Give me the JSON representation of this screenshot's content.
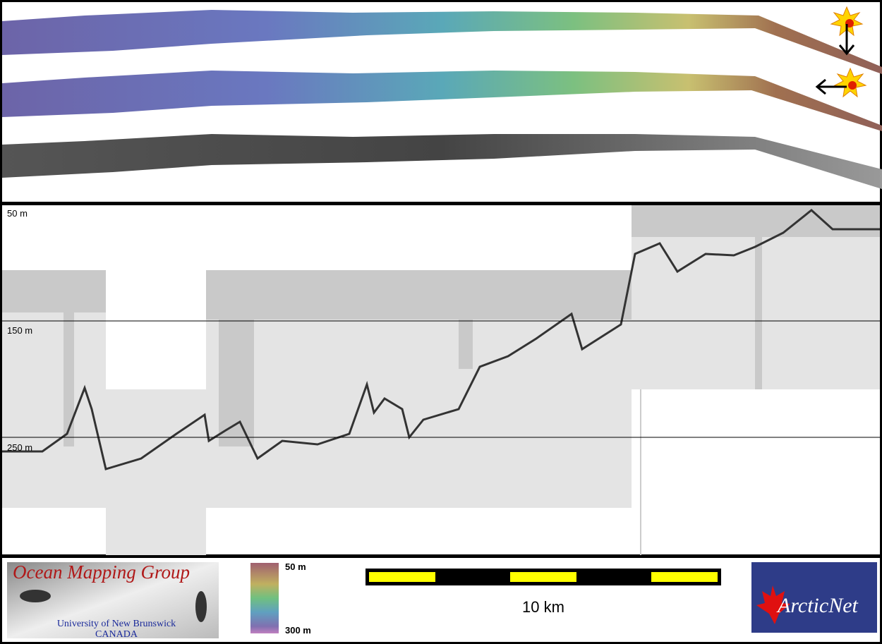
{
  "depth_labels": [
    "50 m",
    "150 m",
    "250 m"
  ],
  "logo": {
    "title": "Ocean Mapping Group",
    "line1": "University of New Brunswick",
    "line2": "CANADA"
  },
  "color_scale": {
    "top": "50 m",
    "bottom": "300 m"
  },
  "scale_bar": {
    "label": "10 km"
  },
  "partner_logo": {
    "text": "ArcticNet"
  }
}
